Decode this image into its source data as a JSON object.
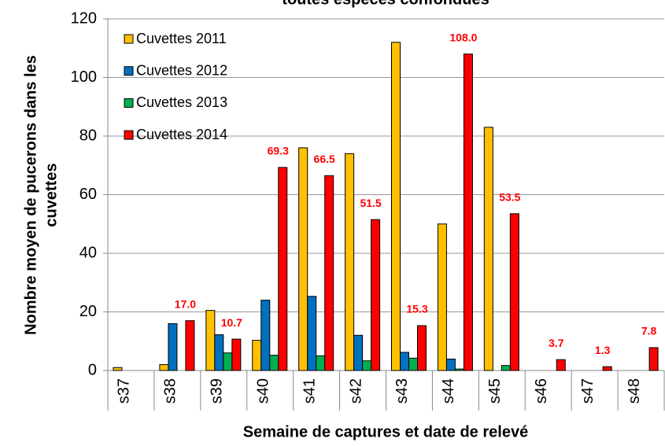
{
  "chart_data": {
    "type": "bar",
    "title": "toutes espèces confondues",
    "y_label": [
      "Nombre moyen de pucerons dans les",
      "cuvettes"
    ],
    "x_label": "Semaine de captures et date de relevé",
    "categories": [
      "s37",
      "s38",
      "s39",
      "s40",
      "s41",
      "s42",
      "s43",
      "s44",
      "s45",
      "s46",
      "s47",
      "s48"
    ],
    "series": [
      {
        "name": "Cuvettes 2011",
        "color": "#FFC000",
        "values": [
          1,
          2,
          20.5,
          10.3,
          76,
          74,
          112,
          50,
          83,
          0,
          0,
          0
        ]
      },
      {
        "name": "Cuvettes 2012",
        "color": "#0070C0",
        "values": [
          0,
          16,
          12.2,
          24,
          25.3,
          12,
          6.2,
          3.9,
          0,
          0,
          0,
          0
        ]
      },
      {
        "name": "Cuvettes 2013",
        "color": "#00B050",
        "values": [
          0,
          0,
          6,
          5.2,
          5,
          3.3,
          4.2,
          0.5,
          1.7,
          0,
          0,
          0
        ]
      },
      {
        "name": "Cuvettes 2014",
        "color": "#FF0000",
        "values": [
          null,
          17.0,
          10.7,
          69.3,
          66.5,
          51.5,
          15.3,
          108.0,
          53.5,
          3.7,
          1.3,
          7.8
        ],
        "value_labels": [
          null,
          "17.0",
          "10.7",
          "69.3",
          "66.5",
          "51.5",
          "15.3",
          "108.0",
          "53.5",
          "3.7",
          "1.3",
          "7.8"
        ]
      }
    ],
    "ylim": [
      0,
      120
    ],
    "yticks": [
      0,
      20,
      40,
      60,
      80,
      100,
      120
    ],
    "grid": true,
    "legend": "top-left"
  }
}
